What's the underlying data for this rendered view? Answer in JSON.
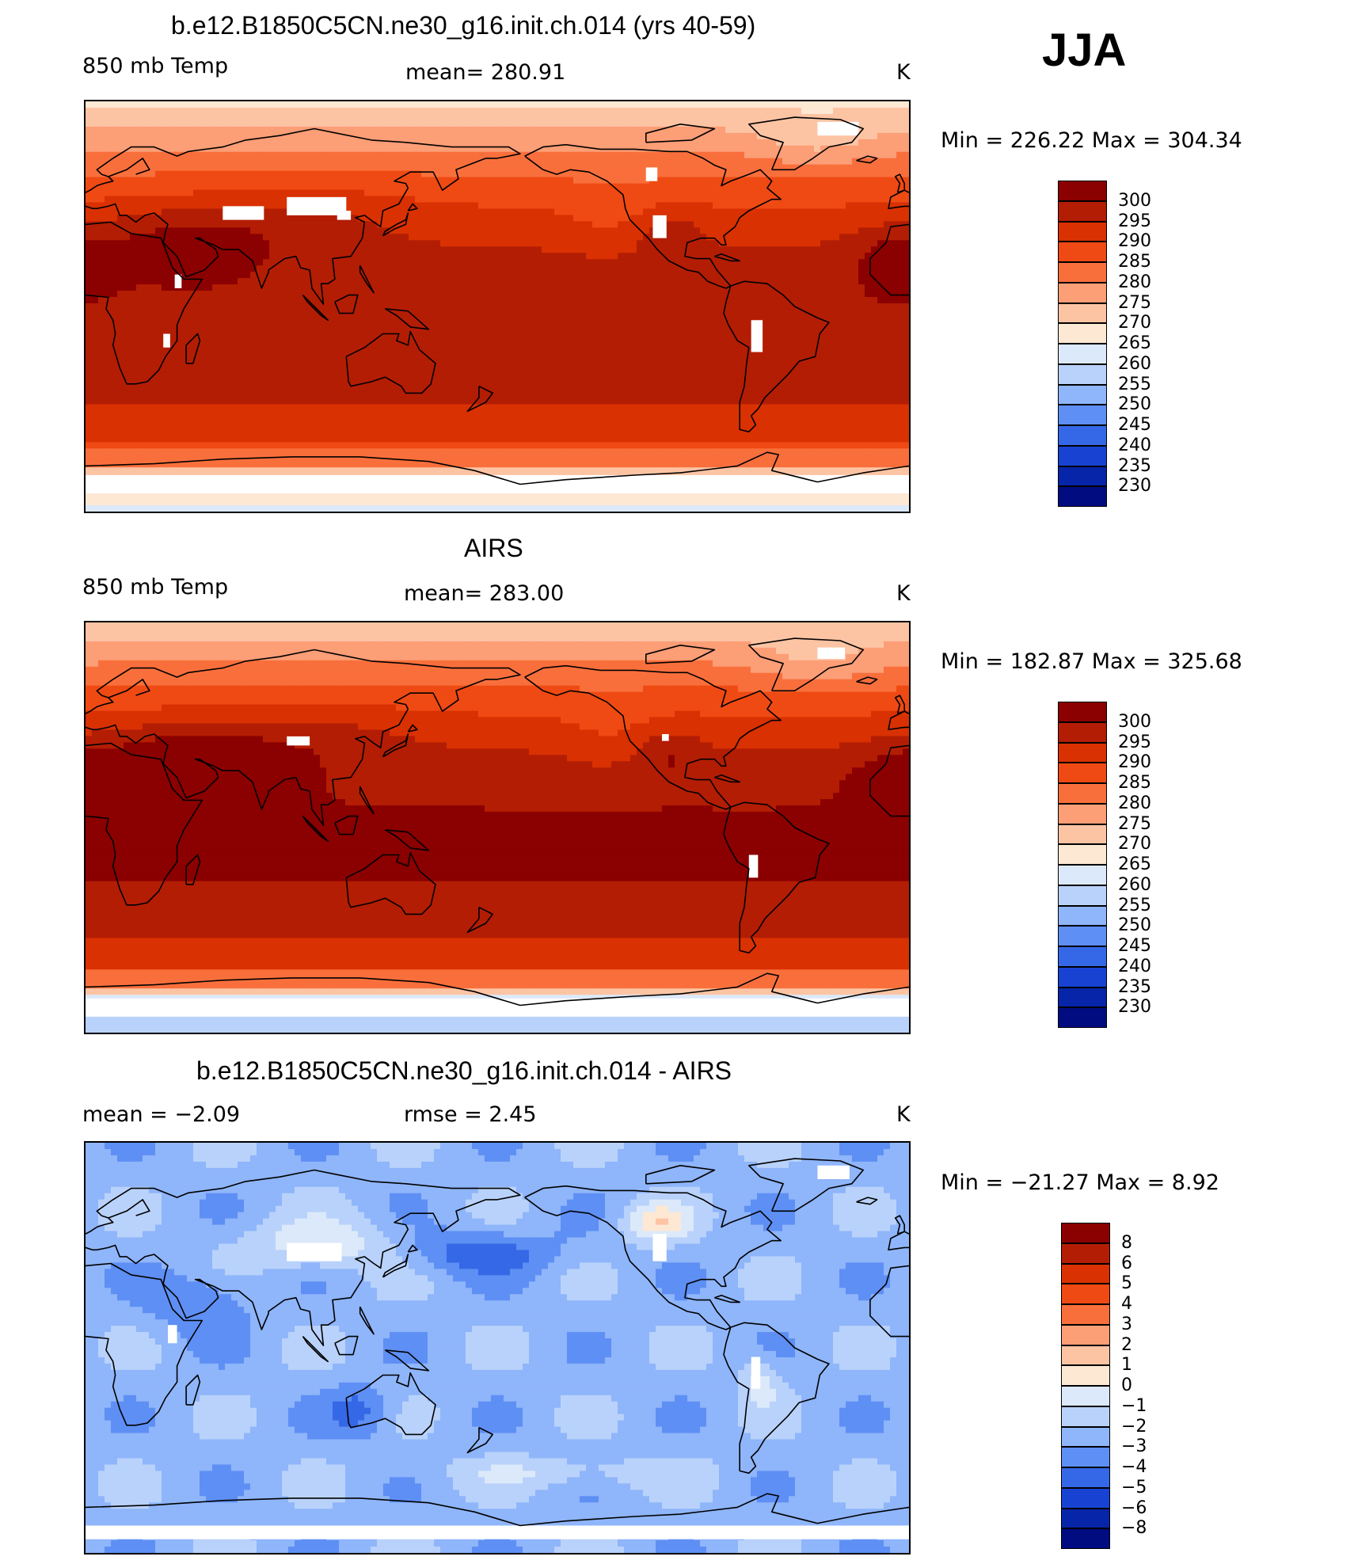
{
  "season": "JJA",
  "panels": [
    {
      "title": "b.e12.B1850C5CN.ne30_g16.init.ch.014 (yrs 40-59)",
      "left_label": "850 mb Temp",
      "center_label": "mean=  280.91",
      "units": "K",
      "minmax": "Min  =  226.22  Max  =  304.34",
      "field": "model"
    },
    {
      "title": "AIRS",
      "left_label": "850 mb Temp",
      "center_label": "mean=  283.00",
      "units": "K",
      "minmax": "Min  =  182.87  Max  =  325.68",
      "field": "obs"
    },
    {
      "title": "b.e12.B1850C5CN.ne30_g16.init.ch.014 - AIRS",
      "left_label": "mean  =     −2.09",
      "center_label": "rmse  =     2.45",
      "units": "K",
      "minmax": "Min  =  −21.27  Max  =     8.92",
      "field": "diff"
    }
  ],
  "colorbars": [
    {
      "labels": [
        "300",
        "295",
        "290",
        "285",
        "280",
        "275",
        "270",
        "265",
        "260",
        "255",
        "250",
        "245",
        "240",
        "235",
        "230"
      ],
      "colors": [
        "#8b0000",
        "#b31d04",
        "#d93102",
        "#ef4a13",
        "#f96f3c",
        "#fc9e76",
        "#fdc4a4",
        "#fde8d4",
        "#dce9fa",
        "#b9d2fb",
        "#8fb5fa",
        "#5e8ff4",
        "#3568e6",
        "#1843d2",
        "#0725a8",
        "#000c80"
      ]
    },
    {
      "labels": [
        "300",
        "295",
        "290",
        "285",
        "280",
        "275",
        "270",
        "265",
        "260",
        "255",
        "250",
        "245",
        "240",
        "235",
        "230"
      ],
      "colors": [
        "#8b0000",
        "#b31d04",
        "#d93102",
        "#ef4a13",
        "#f96f3c",
        "#fc9e76",
        "#fdc4a4",
        "#fde8d4",
        "#dce9fa",
        "#b9d2fb",
        "#8fb5fa",
        "#5e8ff4",
        "#3568e6",
        "#1843d2",
        "#0725a8",
        "#000c80"
      ]
    },
    {
      "labels": [
        "8",
        "6",
        "5",
        "4",
        "3",
        "2",
        "1",
        "0",
        "−1",
        "−2",
        "−3",
        "−4",
        "−5",
        "−6",
        "−8"
      ],
      "colors": [
        "#8b0000",
        "#b31d04",
        "#d93102",
        "#ef4a13",
        "#f96f3c",
        "#fc9e76",
        "#fdc4a4",
        "#fde8d4",
        "#dce9fa",
        "#b9d2fb",
        "#8fb5fa",
        "#5e8ff4",
        "#3568e6",
        "#1843d2",
        "#0725a8",
        "#000c80"
      ]
    }
  ],
  "chart_data": [
    {
      "type": "heatmap",
      "title": "b.e12.B1850C5CN.ne30_g16.init.ch.014 (yrs 40-59)",
      "variable": "850 mb Temp",
      "units": "K",
      "mean": 280.91,
      "min": 226.22,
      "max": 304.34,
      "levels": [
        230,
        235,
        240,
        245,
        250,
        255,
        260,
        265,
        270,
        275,
        280,
        285,
        290,
        295,
        300
      ]
    },
    {
      "type": "heatmap",
      "title": "AIRS",
      "variable": "850 mb Temp",
      "units": "K",
      "mean": 283.0,
      "min": 182.87,
      "max": 325.68,
      "levels": [
        230,
        235,
        240,
        245,
        250,
        255,
        260,
        265,
        270,
        275,
        280,
        285,
        290,
        295,
        300
      ]
    },
    {
      "type": "heatmap",
      "title": "b.e12.B1850C5CN.ne30_g16.init.ch.014 - AIRS",
      "units": "K",
      "mean": -2.09,
      "rmse": 2.45,
      "min": -21.27,
      "max": 8.92,
      "levels": [
        -8,
        -6,
        -5,
        -4,
        -3,
        -2,
        -1,
        0,
        1,
        2,
        3,
        4,
        5,
        6,
        8
      ]
    }
  ]
}
